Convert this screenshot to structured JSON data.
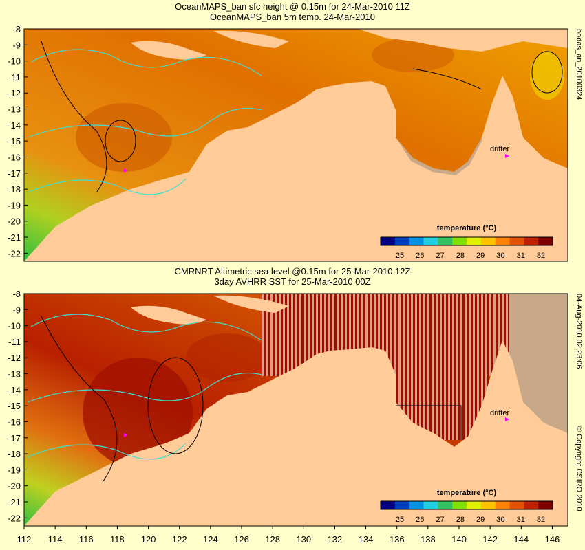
{
  "panel_top": {
    "title_line1": "OceanMAPS_ban sfc height @ 0.15m for 24-Mar-2010 11Z",
    "title_line2": "OceanMAPS_ban 5m temp. 24-Mar-2010",
    "side_label": "bodas_an_20100324",
    "drifter_label": "drifter"
  },
  "panel_bottom": {
    "title_line1": "CMRNRT Altimetric sea level  @0.15m  for 25-Mar-2010 12Z",
    "title_line2": "3day AVHRR SST for 25-Mar-2010 00Z",
    "side_label": "04-Aug-2010 02:23:06",
    "copyright": "© Copyright CSIRO 2010",
    "drifter_label": "drifter"
  },
  "colorbar": {
    "title": "temperature (°C)",
    "ticks": [
      "25",
      "26",
      "27",
      "28",
      "29",
      "30",
      "31",
      "32"
    ],
    "colors": [
      "#000080",
      "#0040c0",
      "#0090e0",
      "#20d0e0",
      "#30c060",
      "#80e000",
      "#e0f000",
      "#ffc000",
      "#ff8000",
      "#e05000",
      "#c02000",
      "#800000"
    ]
  },
  "axes": {
    "lat_ticks": [
      "-8",
      "-9",
      "-10",
      "-11",
      "-12",
      "-13",
      "-14",
      "-15",
      "-16",
      "-17",
      "-18",
      "-19",
      "-20",
      "-21",
      "-22"
    ],
    "lon_ticks": [
      "112",
      "114",
      "116",
      "118",
      "120",
      "122",
      "124",
      "126",
      "128",
      "130",
      "132",
      "134",
      "136",
      "138",
      "140",
      "142",
      "144",
      "146"
    ],
    "lat_range": [
      -22.5,
      -8
    ],
    "lon_range": [
      112,
      147
    ]
  },
  "colors": {
    "land": "#ffcc99",
    "ocean_warm": "#e08000",
    "ocean_hot": "#a01000",
    "cool": "#20c040",
    "gap": "#c8a888",
    "contour_cyan": "#40e0d0",
    "contour_black": "#000000",
    "drifter": "#ff00ff"
  }
}
